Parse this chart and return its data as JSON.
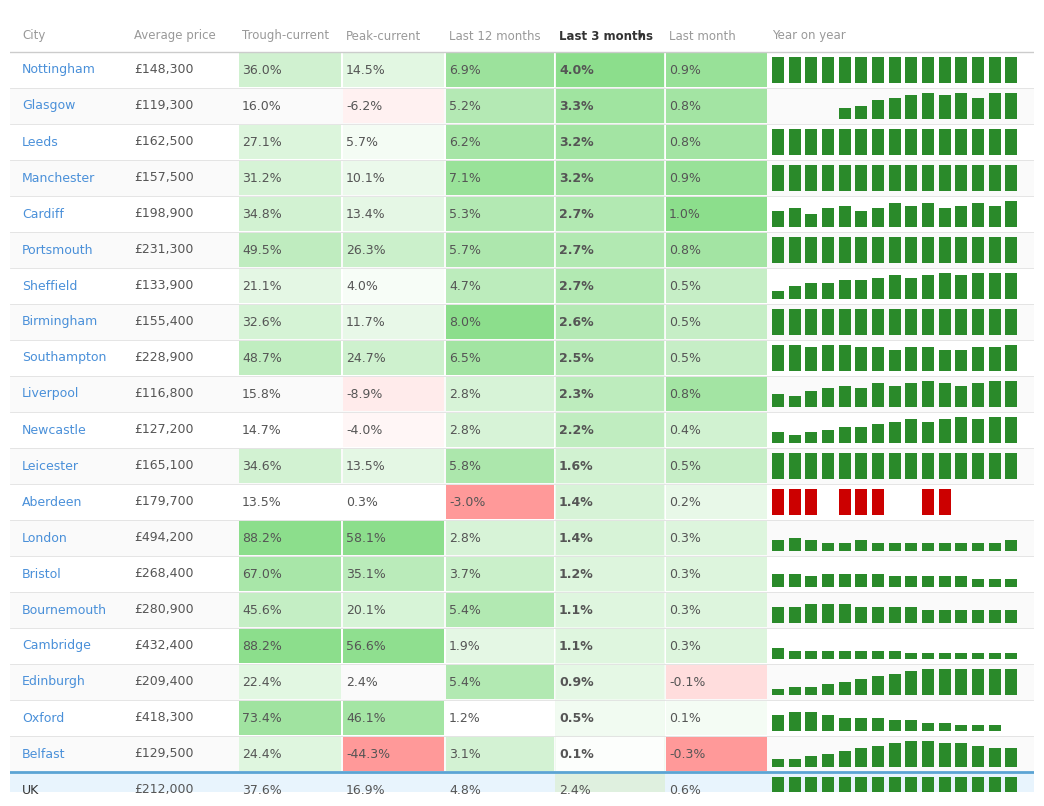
{
  "headers": [
    "City",
    "Average price",
    "Trough-current",
    "Peak-current",
    "Last 12 months",
    "Last 3 months",
    "Last month",
    "Year on year"
  ],
  "rows": [
    {
      "city": "Nottingham",
      "avg_price": "£148,300",
      "trough": "36.0%",
      "peak": "14.5%",
      "last12": "6.9%",
      "last3": "4.0%",
      "lastmonth": "0.9%",
      "trough_val": 36.0,
      "peak_val": 14.5,
      "last12_val": 6.9,
      "last3_val": 4.0,
      "lastmonth_val": 0.9
    },
    {
      "city": "Glasgow",
      "avg_price": "£119,300",
      "trough": "16.0%",
      "peak": "-6.2%",
      "last12": "5.2%",
      "last3": "3.3%",
      "lastmonth": "0.8%",
      "trough_val": 16.0,
      "peak_val": -6.2,
      "last12_val": 5.2,
      "last3_val": 3.3,
      "lastmonth_val": 0.8
    },
    {
      "city": "Leeds",
      "avg_price": "£162,500",
      "trough": "27.1%",
      "peak": "5.7%",
      "last12": "6.2%",
      "last3": "3.2%",
      "lastmonth": "0.8%",
      "trough_val": 27.1,
      "peak_val": 5.7,
      "last12_val": 6.2,
      "last3_val": 3.2,
      "lastmonth_val": 0.8
    },
    {
      "city": "Manchester",
      "avg_price": "£157,500",
      "trough": "31.2%",
      "peak": "10.1%",
      "last12": "7.1%",
      "last3": "3.2%",
      "lastmonth": "0.9%",
      "trough_val": 31.2,
      "peak_val": 10.1,
      "last12_val": 7.1,
      "last3_val": 3.2,
      "lastmonth_val": 0.9
    },
    {
      "city": "Cardiff",
      "avg_price": "£198,900",
      "trough": "34.8%",
      "peak": "13.4%",
      "last12": "5.3%",
      "last3": "2.7%",
      "lastmonth": "1.0%",
      "trough_val": 34.8,
      "peak_val": 13.4,
      "last12_val": 5.3,
      "last3_val": 2.7,
      "lastmonth_val": 1.0
    },
    {
      "city": "Portsmouth",
      "avg_price": "£231,300",
      "trough": "49.5%",
      "peak": "26.3%",
      "last12": "5.7%",
      "last3": "2.7%",
      "lastmonth": "0.8%",
      "trough_val": 49.5,
      "peak_val": 26.3,
      "last12_val": 5.7,
      "last3_val": 2.7,
      "lastmonth_val": 0.8
    },
    {
      "city": "Sheffield",
      "avg_price": "£133,900",
      "trough": "21.1%",
      "peak": "4.0%",
      "last12": "4.7%",
      "last3": "2.7%",
      "lastmonth": "0.5%",
      "trough_val": 21.1,
      "peak_val": 4.0,
      "last12_val": 4.7,
      "last3_val": 2.7,
      "lastmonth_val": 0.5
    },
    {
      "city": "Birmingham",
      "avg_price": "£155,400",
      "trough": "32.6%",
      "peak": "11.7%",
      "last12": "8.0%",
      "last3": "2.6%",
      "lastmonth": "0.5%",
      "trough_val": 32.6,
      "peak_val": 11.7,
      "last12_val": 8.0,
      "last3_val": 2.6,
      "lastmonth_val": 0.5
    },
    {
      "city": "Southampton",
      "avg_price": "£228,900",
      "trough": "48.7%",
      "peak": "24.7%",
      "last12": "6.5%",
      "last3": "2.5%",
      "lastmonth": "0.5%",
      "trough_val": 48.7,
      "peak_val": 24.7,
      "last12_val": 6.5,
      "last3_val": 2.5,
      "lastmonth_val": 0.5
    },
    {
      "city": "Liverpool",
      "avg_price": "£116,800",
      "trough": "15.8%",
      "peak": "-8.9%",
      "last12": "2.8%",
      "last3": "2.3%",
      "lastmonth": "0.8%",
      "trough_val": 15.8,
      "peak_val": -8.9,
      "last12_val": 2.8,
      "last3_val": 2.3,
      "lastmonth_val": 0.8
    },
    {
      "city": "Newcastle",
      "avg_price": "£127,200",
      "trough": "14.7%",
      "peak": "-4.0%",
      "last12": "2.8%",
      "last3": "2.2%",
      "lastmonth": "0.4%",
      "trough_val": 14.7,
      "peak_val": -4.0,
      "last12_val": 2.8,
      "last3_val": 2.2,
      "lastmonth_val": 0.4
    },
    {
      "city": "Leicester",
      "avg_price": "£165,100",
      "trough": "34.6%",
      "peak": "13.5%",
      "last12": "5.8%",
      "last3": "1.6%",
      "lastmonth": "0.5%",
      "trough_val": 34.6,
      "peak_val": 13.5,
      "last12_val": 5.8,
      "last3_val": 1.6,
      "lastmonth_val": 0.5
    },
    {
      "city": "Aberdeen",
      "avg_price": "£179,700",
      "trough": "13.5%",
      "peak": "0.3%",
      "last12": "-3.0%",
      "last3": "1.4%",
      "lastmonth": "0.2%",
      "trough_val": 13.5,
      "peak_val": 0.3,
      "last12_val": -3.0,
      "last3_val": 1.4,
      "lastmonth_val": 0.2
    },
    {
      "city": "London",
      "avg_price": "£494,200",
      "trough": "88.2%",
      "peak": "58.1%",
      "last12": "2.8%",
      "last3": "1.4%",
      "lastmonth": "0.3%",
      "trough_val": 88.2,
      "peak_val": 58.1,
      "last12_val": 2.8,
      "last3_val": 1.4,
      "lastmonth_val": 0.3
    },
    {
      "city": "Bristol",
      "avg_price": "£268,400",
      "trough": "67.0%",
      "peak": "35.1%",
      "last12": "3.7%",
      "last3": "1.2%",
      "lastmonth": "0.3%",
      "trough_val": 67.0,
      "peak_val": 35.1,
      "last12_val": 3.7,
      "last3_val": 1.2,
      "lastmonth_val": 0.3
    },
    {
      "city": "Bournemouth",
      "avg_price": "£280,900",
      "trough": "45.6%",
      "peak": "20.1%",
      "last12": "5.4%",
      "last3": "1.1%",
      "lastmonth": "0.3%",
      "trough_val": 45.6,
      "peak_val": 20.1,
      "last12_val": 5.4,
      "last3_val": 1.1,
      "lastmonth_val": 0.3
    },
    {
      "city": "Cambridge",
      "avg_price": "£432,400",
      "trough": "88.2%",
      "peak": "56.6%",
      "last12": "1.9%",
      "last3": "1.1%",
      "lastmonth": "0.3%",
      "trough_val": 88.2,
      "peak_val": 56.6,
      "last12_val": 1.9,
      "last3_val": 1.1,
      "lastmonth_val": 0.3
    },
    {
      "city": "Edinburgh",
      "avg_price": "£209,400",
      "trough": "22.4%",
      "peak": "2.4%",
      "last12": "5.4%",
      "last3": "0.9%",
      "lastmonth": "-0.1%",
      "trough_val": 22.4,
      "peak_val": 2.4,
      "last12_val": 5.4,
      "last3_val": 0.9,
      "lastmonth_val": -0.1
    },
    {
      "city": "Oxford",
      "avg_price": "£418,300",
      "trough": "73.4%",
      "peak": "46.1%",
      "last12": "1.2%",
      "last3": "0.5%",
      "lastmonth": "0.1%",
      "trough_val": 73.4,
      "peak_val": 46.1,
      "last12_val": 1.2,
      "last3_val": 0.5,
      "lastmonth_val": 0.1
    },
    {
      "city": "Belfast",
      "avg_price": "£129,500",
      "trough": "24.4%",
      "peak": "-44.3%",
      "last12": "3.1%",
      "last3": "0.1%",
      "lastmonth": "-0.3%",
      "trough_val": 24.4,
      "peak_val": -44.3,
      "last12_val": 3.1,
      "last3_val": 0.1,
      "lastmonth_val": -0.3
    }
  ],
  "uk_row": {
    "city": "UK",
    "avg_price": "£212,000",
    "trough": "37.6%",
    "peak": "16.9%",
    "last12": "4.8%",
    "last3": "2.4%",
    "lastmonth": "0.6%",
    "trough_val": 37.6,
    "peak_val": 16.9,
    "last12_val": 4.8,
    "last3_val": 2.4,
    "lastmonth_val": 0.6
  },
  "city_color": "#4a90d9",
  "text_color": "#555555",
  "header_text_color": "#999999",
  "separator_color": "#e0e0e0",
  "uk_row_bg": "#e8f4fd",
  "sort_col_bg": "#f0faf0",
  "bar_green": "#2a8a2a",
  "bar_red": "#cc0000",
  "yoy_bar_patterns": [
    [
      1,
      1,
      1,
      1,
      1,
      1,
      1,
      1,
      1,
      1,
      1,
      1,
      1,
      1,
      1
    ],
    [
      0,
      0,
      0,
      0,
      0.4,
      0.5,
      0.7,
      0.8,
      0.9,
      1.0,
      0.9,
      1.0,
      0.8,
      1.0,
      1.0
    ],
    [
      1,
      1,
      1,
      1,
      1,
      1,
      1,
      1,
      1,
      1,
      1,
      1,
      1,
      1,
      1
    ],
    [
      1,
      1,
      1,
      1,
      1,
      1,
      1,
      1,
      1,
      1,
      1,
      1,
      1,
      1,
      1
    ],
    [
      0.6,
      0.7,
      0.5,
      0.7,
      0.8,
      0.6,
      0.7,
      0.9,
      0.8,
      0.9,
      0.7,
      0.8,
      0.9,
      0.8,
      1.0
    ],
    [
      1,
      1,
      1,
      1,
      1,
      1,
      1,
      1,
      1,
      1,
      1,
      1,
      1,
      1,
      1
    ],
    [
      0.3,
      0.5,
      0.6,
      0.6,
      0.7,
      0.7,
      0.8,
      0.9,
      0.8,
      0.9,
      1.0,
      0.9,
      1.0,
      1.0,
      1.0
    ],
    [
      1,
      1,
      1,
      1,
      1,
      1,
      1,
      1,
      1,
      1,
      1,
      1,
      1,
      1,
      1
    ],
    [
      1,
      1,
      0.9,
      1,
      1,
      0.9,
      0.9,
      0.8,
      0.9,
      0.9,
      0.8,
      0.8,
      0.9,
      0.9,
      1.0
    ],
    [
      0.5,
      0.4,
      0.6,
      0.7,
      0.8,
      0.7,
      0.9,
      0.8,
      0.9,
      1.0,
      0.9,
      0.8,
      0.9,
      1.0,
      1.0
    ],
    [
      0.4,
      0.3,
      0.4,
      0.5,
      0.6,
      0.6,
      0.7,
      0.8,
      0.9,
      0.8,
      0.9,
      1.0,
      0.9,
      1.0,
      1.0
    ],
    [
      1,
      1,
      1,
      1,
      1,
      1,
      1,
      1,
      1,
      1,
      1,
      1,
      1,
      1,
      1
    ],
    [
      1,
      1,
      1,
      0,
      1,
      1,
      1,
      0,
      0,
      1,
      1,
      0,
      0,
      0,
      0
    ],
    [
      0.4,
      0.5,
      0.4,
      0.3,
      0.3,
      0.4,
      0.3,
      0.3,
      0.3,
      0.3,
      0.3,
      0.3,
      0.3,
      0.3,
      0.4
    ],
    [
      0.5,
      0.5,
      0.4,
      0.5,
      0.5,
      0.5,
      0.5,
      0.4,
      0.4,
      0.4,
      0.4,
      0.4,
      0.3,
      0.3,
      0.3
    ],
    [
      0.6,
      0.6,
      0.7,
      0.7,
      0.7,
      0.6,
      0.6,
      0.6,
      0.6,
      0.5,
      0.5,
      0.5,
      0.5,
      0.5,
      0.5
    ],
    [
      0.4,
      0.3,
      0.3,
      0.3,
      0.3,
      0.3,
      0.3,
      0.3,
      0.2,
      0.2,
      0.2,
      0.2,
      0.2,
      0.2,
      0.2
    ],
    [
      0.2,
      0.3,
      0.3,
      0.4,
      0.5,
      0.6,
      0.7,
      0.8,
      0.9,
      1.0,
      1.0,
      1.0,
      1.0,
      1.0,
      1.0
    ],
    [
      0.6,
      0.7,
      0.7,
      0.6,
      0.5,
      0.5,
      0.5,
      0.4,
      0.4,
      0.3,
      0.3,
      0.2,
      0.2,
      0.2,
      0.0
    ],
    [
      0.3,
      0.3,
      0.4,
      0.5,
      0.6,
      0.7,
      0.8,
      0.9,
      1.0,
      1.0,
      0.9,
      0.9,
      0.8,
      0.7,
      0.7
    ]
  ],
  "yoy_bar_is_red": [
    false,
    false,
    false,
    false,
    false,
    false,
    false,
    false,
    false,
    false,
    false,
    false,
    true,
    false,
    false,
    false,
    false,
    false,
    false,
    false
  ],
  "uk_yoy_pattern": [
    1,
    1,
    1,
    1,
    1,
    1,
    1,
    1,
    1,
    1,
    1,
    1,
    1,
    1,
    1
  ]
}
